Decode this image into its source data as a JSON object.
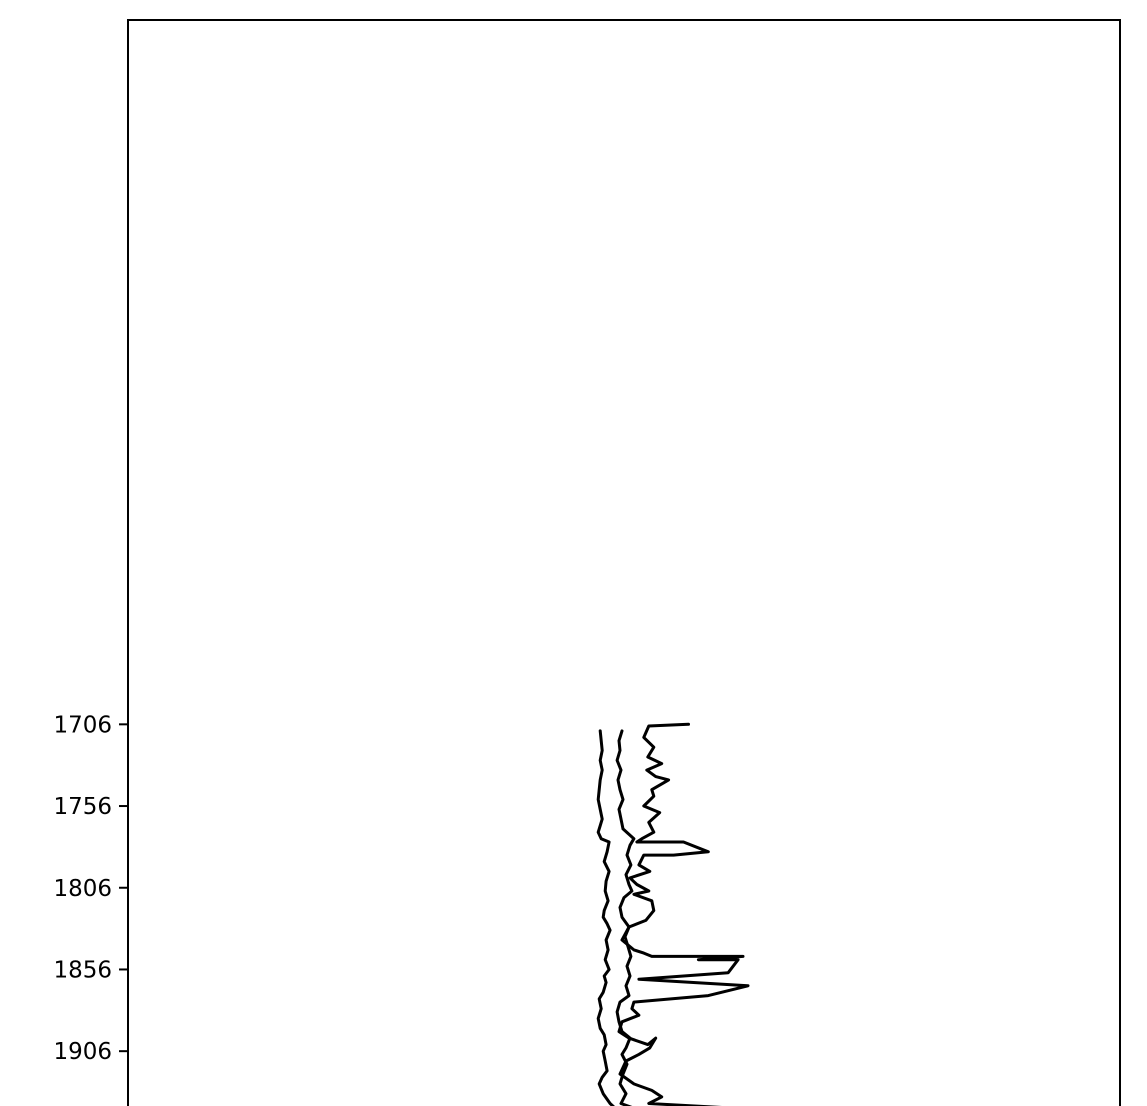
{
  "chart_data": {
    "type": "line",
    "title": "",
    "xlabel": "",
    "ylabel": "",
    "orientation": "vertical-depth",
    "y_inverted": true,
    "ylim": [
      1275,
      1942
    ],
    "y_ticks": [
      1706,
      1756,
      1806,
      1856,
      1906
    ],
    "y_tick_labels": [
      "1706",
      "1756",
      "1806",
      "1856",
      "1906"
    ],
    "xlim": [
      0,
      100
    ],
    "grid": false,
    "legend": "none",
    "line_color": "#000000",
    "series": [
      {
        "points": [
          [
            47.6,
            1710
          ],
          [
            47.7,
            1716
          ],
          [
            47.8,
            1722
          ],
          [
            47.6,
            1728
          ],
          [
            47.8,
            1734
          ],
          [
            47.6,
            1740
          ],
          [
            47.5,
            1746
          ],
          [
            47.4,
            1752
          ],
          [
            47.6,
            1758
          ],
          [
            47.8,
            1764
          ],
          [
            47.6,
            1768
          ],
          [
            47.4,
            1772
          ],
          [
            47.7,
            1776
          ],
          [
            48.5,
            1778
          ],
          [
            48.3,
            1784
          ],
          [
            48.0,
            1790
          ],
          [
            48.5,
            1796
          ],
          [
            48.2,
            1802
          ],
          [
            48.1,
            1808
          ],
          [
            48.4,
            1814
          ],
          [
            48.0,
            1820
          ],
          [
            47.9,
            1824
          ],
          [
            48.3,
            1828
          ],
          [
            48.6,
            1832
          ],
          [
            48.2,
            1838
          ],
          [
            48.4,
            1844
          ],
          [
            48.1,
            1850
          ],
          [
            48.5,
            1856
          ],
          [
            48.0,
            1860
          ],
          [
            48.2,
            1864
          ],
          [
            47.9,
            1870
          ],
          [
            47.5,
            1874
          ],
          [
            47.7,
            1880
          ],
          [
            47.4,
            1886
          ],
          [
            47.6,
            1892
          ],
          [
            48.0,
            1896
          ],
          [
            48.2,
            1902
          ],
          [
            47.9,
            1906
          ],
          [
            48.1,
            1912
          ],
          [
            48.3,
            1918
          ],
          [
            47.8,
            1922
          ],
          [
            47.5,
            1926
          ],
          [
            47.9,
            1932
          ],
          [
            48.6,
            1938
          ],
          [
            49.3,
            1942
          ]
        ]
      },
      {
        "points": [
          [
            49.8,
            1710
          ],
          [
            49.5,
            1716
          ],
          [
            49.6,
            1722
          ],
          [
            49.3,
            1728
          ],
          [
            49.7,
            1734
          ],
          [
            49.4,
            1740
          ],
          [
            49.6,
            1746
          ],
          [
            49.9,
            1752
          ],
          [
            49.5,
            1758
          ],
          [
            49.7,
            1764
          ],
          [
            49.9,
            1770
          ],
          [
            51.0,
            1776
          ],
          [
            50.6,
            1780
          ],
          [
            50.3,
            1786
          ],
          [
            50.7,
            1792
          ],
          [
            50.2,
            1798
          ],
          [
            50.5,
            1804
          ],
          [
            50.8,
            1808
          ],
          [
            50.0,
            1812
          ],
          [
            49.6,
            1818
          ],
          [
            49.8,
            1824
          ],
          [
            50.5,
            1830
          ],
          [
            50.1,
            1836
          ],
          [
            50.4,
            1842
          ],
          [
            50.7,
            1848
          ],
          [
            50.3,
            1854
          ],
          [
            50.6,
            1860
          ],
          [
            50.2,
            1866
          ],
          [
            50.5,
            1872
          ],
          [
            49.6,
            1876
          ],
          [
            49.3,
            1882
          ],
          [
            49.5,
            1888
          ],
          [
            49.8,
            1894
          ],
          [
            50.6,
            1898
          ],
          [
            50.2,
            1904
          ],
          [
            49.8,
            1908
          ],
          [
            50.3,
            1914
          ],
          [
            49.9,
            1920
          ],
          [
            49.6,
            1926
          ],
          [
            50.2,
            1932
          ],
          [
            49.7,
            1938
          ],
          [
            51.5,
            1942
          ]
        ]
      },
      {
        "points": [
          [
            56.5,
            1706
          ],
          [
            52.5,
            1707
          ],
          [
            52.0,
            1714
          ],
          [
            53.0,
            1720
          ],
          [
            52.4,
            1726
          ],
          [
            53.8,
            1730
          ],
          [
            52.3,
            1734
          ],
          [
            53.2,
            1738
          ],
          [
            54.5,
            1740
          ],
          [
            52.8,
            1746
          ],
          [
            53.0,
            1750
          ],
          [
            52.0,
            1756
          ],
          [
            53.6,
            1760
          ],
          [
            52.5,
            1766
          ],
          [
            53.0,
            1772
          ],
          [
            51.8,
            1776
          ],
          [
            51.3,
            1778
          ],
          [
            56.0,
            1778
          ],
          [
            58.5,
            1784
          ],
          [
            55.0,
            1786
          ],
          [
            52.0,
            1786
          ],
          [
            51.5,
            1792
          ],
          [
            52.6,
            1796
          ],
          [
            50.6,
            1800
          ],
          [
            51.3,
            1804
          ],
          [
            52.5,
            1808
          ],
          [
            51.0,
            1810
          ],
          [
            52.8,
            1814
          ],
          [
            53.0,
            1820
          ],
          [
            52.2,
            1826
          ],
          [
            50.5,
            1830
          ],
          [
            49.8,
            1838
          ],
          [
            51.0,
            1844
          ],
          [
            52.0,
            1846
          ],
          [
            52.8,
            1848
          ],
          [
            62.0,
            1848
          ],
          [
            57.5,
            1850
          ],
          [
            61.5,
            1850
          ],
          [
            60.5,
            1858
          ],
          [
            51.5,
            1862
          ],
          [
            62.5,
            1866
          ],
          [
            58.5,
            1872
          ],
          [
            51.0,
            1876
          ],
          [
            50.8,
            1880
          ],
          [
            51.5,
            1884
          ],
          [
            49.8,
            1888
          ],
          [
            49.5,
            1894
          ],
          [
            50.5,
            1898
          ],
          [
            52.4,
            1902
          ],
          [
            53.2,
            1898
          ],
          [
            52.6,
            1904
          ],
          [
            51.5,
            1908
          ],
          [
            50.2,
            1912
          ],
          [
            49.6,
            1920
          ],
          [
            51.0,
            1926
          ],
          [
            52.8,
            1930
          ],
          [
            53.8,
            1934
          ],
          [
            52.5,
            1938
          ],
          [
            64.5,
            1942
          ]
        ]
      }
    ]
  }
}
